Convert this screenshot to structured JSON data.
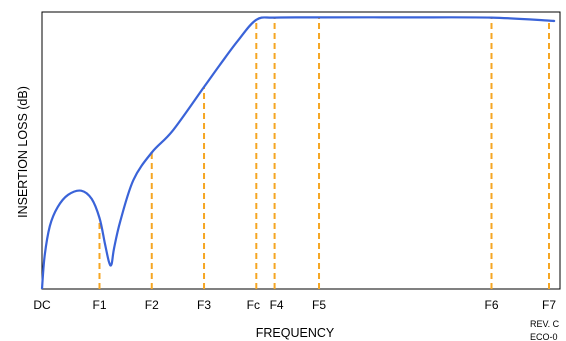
{
  "chart_data": {
    "type": "line",
    "title": "",
    "xlabel": "FREQUENCY",
    "ylabel": "INSERTION LOSS (dB)",
    "grid": false,
    "legend": "none",
    "y_tick_labels": false,
    "x_ticks": [
      {
        "label": "DC",
        "x": 0
      },
      {
        "label": "F1",
        "x": 1.1
      },
      {
        "label": "F2",
        "x": 2.1
      },
      {
        "label": "F3",
        "x": 3.1
      },
      {
        "label": "Fc",
        "x": 4.1
      },
      {
        "label": "F4",
        "x": 4.45
      },
      {
        "label": "F5",
        "x": 5.3
      },
      {
        "label": "F6",
        "x": 8.6
      },
      {
        "label": "F7",
        "x": 9.7
      }
    ],
    "markers_dashed": [
      "F1",
      "F2",
      "F3",
      "Fc",
      "F4",
      "F5",
      "F6",
      "F7"
    ],
    "xlim": [
      0,
      9.7
    ],
    "ylim": [
      0,
      100
    ],
    "series": [
      {
        "points": [
          [
            0,
            0
          ],
          [
            0.05,
            12
          ],
          [
            0.15,
            23
          ],
          [
            0.3,
            30
          ],
          [
            0.5,
            34.5
          ],
          [
            0.75,
            36
          ],
          [
            0.95,
            33
          ],
          [
            1.1,
            26
          ],
          [
            1.2,
            17
          ],
          [
            1.28,
            10
          ],
          [
            1.33,
            9
          ],
          [
            1.38,
            15
          ],
          [
            1.5,
            25
          ],
          [
            1.75,
            40
          ],
          [
            2.1,
            50
          ],
          [
            2.5,
            58
          ],
          [
            3.1,
            74
          ],
          [
            3.4,
            82
          ],
          [
            3.75,
            91
          ],
          [
            4.1,
            98.6
          ],
          [
            4.45,
            99.4
          ],
          [
            5.3,
            99.5
          ],
          [
            7.0,
            99.5
          ],
          [
            8.6,
            99.4
          ],
          [
            9.7,
            98.3
          ],
          [
            9.75,
            98.2
          ]
        ]
      }
    ],
    "colors": {
      "curve": "#3a63d8",
      "markers": "#f5a623",
      "axis": "#000000"
    }
  },
  "revision": {
    "line1": "REV. C",
    "line2": "ECO-0"
  }
}
